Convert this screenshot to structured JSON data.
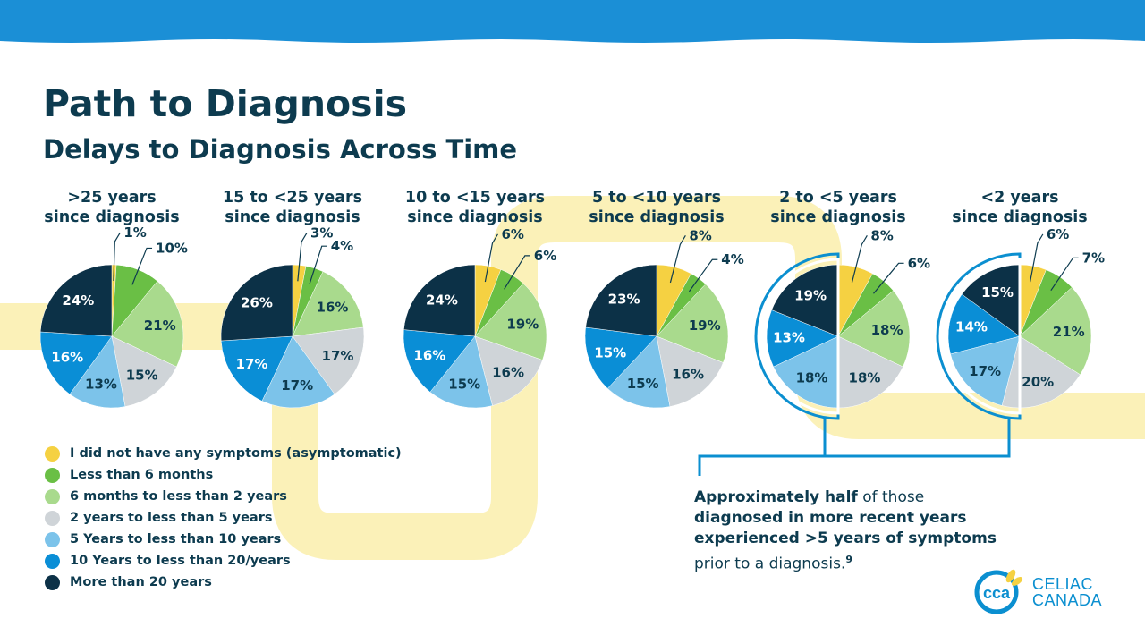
{
  "header": {
    "title": "Path to Diagnosis",
    "subtitle": "Delays to Diagnosis Across Time"
  },
  "colors": {
    "top_band": "#1b8fd6",
    "road": "#fbf1b8",
    "text": "#0d3b4f",
    "highlight": "#0b8fd0"
  },
  "chart_data": {
    "type": "pie",
    "categories": [
      "I did not have any symptoms (asymptomatic)",
      "Less than 6 months",
      "6 months to less than 2 years",
      "2 years to less than 5 years",
      "5 Years to less than 10 years",
      "10 Years to less than 20/years",
      "More than 20 years"
    ],
    "category_colors": [
      "#f5d142",
      "#6abf45",
      "#a9da8d",
      "#cfd4d8",
      "#7cc3ea",
      "#0a8ed6",
      "#0c3147"
    ],
    "series": [
      {
        "name": ">25 years since diagnosis",
        "values": [
          1,
          10,
          21,
          15,
          13,
          16,
          24
        ]
      },
      {
        "name": "15 to <25 years since diagnosis",
        "values": [
          3,
          4,
          16,
          17,
          17,
          17,
          26
        ]
      },
      {
        "name": "10 to <15 years since diagnosis",
        "values": [
          6,
          6,
          19,
          16,
          15,
          16,
          24
        ]
      },
      {
        "name": "5 to <10 years since diagnosis",
        "values": [
          8,
          4,
          19,
          16,
          15,
          15,
          23
        ]
      },
      {
        "name": "2 to <5 years since diagnosis",
        "values": [
          8,
          6,
          18,
          18,
          18,
          13,
          19
        ]
      },
      {
        "name": "<2 years since diagnosis",
        "values": [
          6,
          7,
          21,
          20,
          17,
          14,
          15
        ]
      }
    ],
    "pie_titles": [
      [
        ">25 years",
        "since diagnosis"
      ],
      [
        "15 to <25 years",
        "since diagnosis"
      ],
      [
        "10 to <15 years",
        "since diagnosis"
      ],
      [
        "5 to <10 years",
        "since diagnosis"
      ],
      [
        "2 to <5 years",
        "since diagnosis"
      ],
      [
        "<2 years",
        "since diagnosis"
      ]
    ],
    "value_suffix": "%",
    "highlighted_pies": [
      4,
      5
    ],
    "legend_position": "bottom-left"
  },
  "note": {
    "bold_1": "Approximately half",
    "plain_1": " of those",
    "bold_2": "diagnosed in more recent years",
    "bold_3": "experienced >5 years of symptoms",
    "plain_2": "prior to a diagnosis.",
    "superscript": "9"
  },
  "logo": {
    "mark": "cca",
    "line_1": "CELIAC",
    "line_2": "CANADA"
  }
}
